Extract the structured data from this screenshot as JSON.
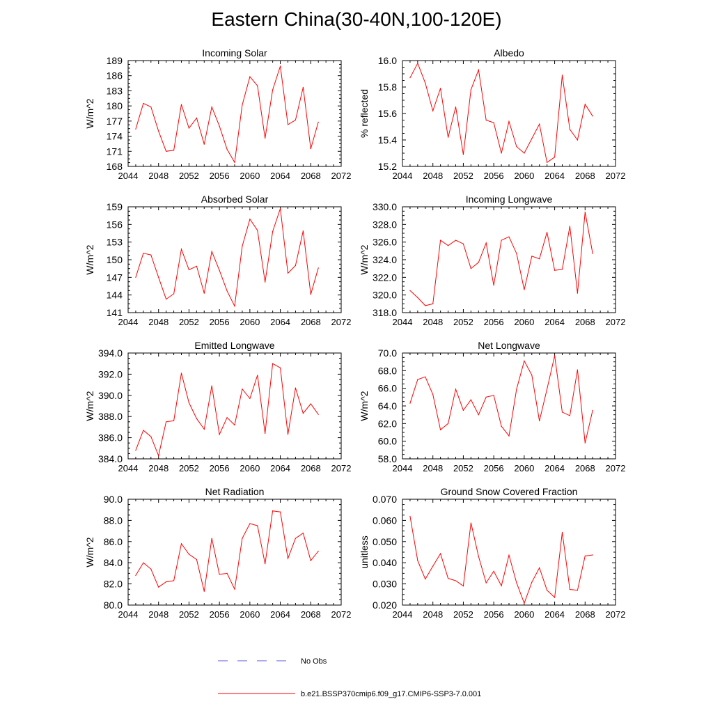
{
  "title": "Eastern China(30-40N,100-120E)",
  "legend": {
    "obs_label": "No Obs",
    "obs_color": "#5a5ad6",
    "model_label": "b.e21.BSSP370cmip6.f09_g17.CMIP6-SSP3-7.0.001",
    "model_color": "#ff0000"
  },
  "chart_data": [
    {
      "type": "line",
      "title": "Incoming Solar",
      "ylabel": "W/m^2",
      "xlim": [
        2044,
        2072
      ],
      "xticks": [
        2044,
        2048,
        2052,
        2056,
        2060,
        2064,
        2068,
        2072
      ],
      "ylim": [
        168,
        189
      ],
      "yticks": [
        "168",
        "171",
        "174",
        "177",
        "180",
        "183",
        "186",
        "189"
      ],
      "x": [
        2045,
        2046,
        2047,
        2048,
        2049,
        2050,
        2051,
        2052,
        2053,
        2054,
        2055,
        2056,
        2057,
        2058,
        2059,
        2060,
        2061,
        2062,
        2063,
        2064,
        2065,
        2066,
        2067,
        2068,
        2069
      ],
      "series": [
        {
          "values": [
            175.4,
            180.5,
            179.8,
            175.0,
            171.0,
            171.2,
            180.3,
            175.6,
            177.6,
            172.4,
            179.8,
            176.0,
            171.4,
            168.8,
            180.2,
            185.8,
            184.0,
            173.6,
            183.2,
            187.9,
            176.3,
            177.2,
            183.7,
            171.5,
            176.8
          ]
        }
      ]
    },
    {
      "type": "line",
      "title": "Albedo",
      "ylabel": "% reflected",
      "xlim": [
        2044,
        2072
      ],
      "xticks": [
        2044,
        2048,
        2052,
        2056,
        2060,
        2064,
        2068,
        2072
      ],
      "ylim": [
        15.2,
        16.0
      ],
      "yticks": [
        "15.2",
        "15.4",
        "15.6",
        "15.8",
        "16.0"
      ],
      "x": [
        2045,
        2046,
        2047,
        2048,
        2049,
        2050,
        2051,
        2052,
        2053,
        2054,
        2055,
        2056,
        2057,
        2058,
        2059,
        2060,
        2061,
        2062,
        2063,
        2064,
        2065,
        2066,
        2067,
        2068,
        2069
      ],
      "series": [
        {
          "values": [
            15.87,
            15.98,
            15.83,
            15.62,
            15.79,
            15.42,
            15.65,
            15.29,
            15.78,
            15.93,
            15.55,
            15.53,
            15.3,
            15.54,
            15.35,
            15.3,
            15.41,
            15.52,
            15.23,
            15.27,
            15.89,
            15.48,
            15.4,
            15.67,
            15.58
          ]
        }
      ]
    },
    {
      "type": "line",
      "title": "Absorbed Solar",
      "ylabel": "W/m^2",
      "xlim": [
        2044,
        2072
      ],
      "xticks": [
        2044,
        2048,
        2052,
        2056,
        2060,
        2064,
        2068,
        2072
      ],
      "ylim": [
        141,
        159
      ],
      "yticks": [
        "141",
        "144",
        "147",
        "150",
        "153",
        "156",
        "159"
      ],
      "x": [
        2045,
        2046,
        2047,
        2048,
        2049,
        2050,
        2051,
        2052,
        2053,
        2054,
        2055,
        2056,
        2057,
        2058,
        2059,
        2060,
        2061,
        2062,
        2063,
        2064,
        2065,
        2066,
        2067,
        2068,
        2069
      ],
      "series": [
        {
          "values": [
            147.0,
            151.1,
            150.8,
            147.0,
            143.3,
            144.2,
            151.8,
            148.3,
            148.9,
            144.3,
            151.4,
            148.2,
            144.7,
            142.1,
            152.3,
            156.9,
            155.0,
            146.2,
            154.8,
            158.7,
            147.7,
            149.0,
            154.9,
            144.1,
            148.6
          ]
        }
      ]
    },
    {
      "type": "line",
      "title": "Incoming Longwave",
      "ylabel": "W/m^2",
      "xlim": [
        2044,
        2072
      ],
      "xticks": [
        2044,
        2048,
        2052,
        2056,
        2060,
        2064,
        2068,
        2072
      ],
      "ylim": [
        318.0,
        330.0
      ],
      "yticks": [
        "318.0",
        "320.0",
        "322.0",
        "324.0",
        "326.0",
        "328.0",
        "330.0"
      ],
      "x": [
        2045,
        2046,
        2047,
        2048,
        2049,
        2050,
        2051,
        2052,
        2053,
        2054,
        2055,
        2056,
        2057,
        2058,
        2059,
        2060,
        2061,
        2062,
        2063,
        2064,
        2065,
        2066,
        2067,
        2068,
        2069
      ],
      "series": [
        {
          "values": [
            320.5,
            319.7,
            318.8,
            319.0,
            326.2,
            325.6,
            326.2,
            325.8,
            323.0,
            323.7,
            325.9,
            321.1,
            326.2,
            326.6,
            324.7,
            320.6,
            324.4,
            324.1,
            327.1,
            322.8,
            322.9,
            327.8,
            320.2,
            329.4,
            324.7
          ]
        }
      ]
    },
    {
      "type": "line",
      "title": "Emitted Longwave",
      "ylabel": "W/m^2",
      "xlim": [
        2044,
        2072
      ],
      "xticks": [
        2044,
        2048,
        2052,
        2056,
        2060,
        2064,
        2068,
        2072
      ],
      "ylim": [
        384.0,
        394.0
      ],
      "yticks": [
        "384.0",
        "386.0",
        "388.0",
        "390.0",
        "392.0",
        "394.0"
      ],
      "x": [
        2045,
        2046,
        2047,
        2048,
        2049,
        2050,
        2051,
        2052,
        2053,
        2054,
        2055,
        2056,
        2057,
        2058,
        2059,
        2060,
        2061,
        2062,
        2063,
        2064,
        2065,
        2066,
        2067,
        2068,
        2069
      ],
      "series": [
        {
          "values": [
            384.8,
            386.7,
            386.1,
            384.3,
            387.5,
            387.6,
            392.1,
            389.3,
            387.8,
            386.8,
            390.9,
            386.3,
            387.9,
            387.2,
            390.6,
            389.7,
            391.9,
            386.4,
            393.0,
            392.6,
            386.3,
            390.7,
            388.3,
            389.2,
            388.2
          ]
        }
      ]
    },
    {
      "type": "line",
      "title": "Net Longwave",
      "ylabel": "W/m^2",
      "xlim": [
        2044,
        2072
      ],
      "xticks": [
        2044,
        2048,
        2052,
        2056,
        2060,
        2064,
        2068,
        2072
      ],
      "ylim": [
        58.0,
        70.0
      ],
      "yticks": [
        "58.0",
        "60.0",
        "62.0",
        "64.0",
        "66.0",
        "68.0",
        "70.0"
      ],
      "x": [
        2045,
        2046,
        2047,
        2048,
        2049,
        2050,
        2051,
        2052,
        2053,
        2054,
        2055,
        2056,
        2057,
        2058,
        2059,
        2060,
        2061,
        2062,
        2063,
        2064,
        2065,
        2066,
        2067,
        2068,
        2069
      ],
      "series": [
        {
          "values": [
            64.3,
            67.0,
            67.3,
            65.3,
            61.3,
            62.0,
            65.9,
            63.5,
            64.7,
            63.0,
            65.0,
            65.2,
            61.7,
            60.6,
            65.9,
            69.1,
            67.5,
            62.3,
            65.9,
            69.7,
            63.3,
            62.9,
            68.1,
            59.8,
            63.5
          ]
        }
      ]
    },
    {
      "type": "line",
      "title": "Net Radiation",
      "ylabel": "W/m^2",
      "xlim": [
        2044,
        2072
      ],
      "xticks": [
        2044,
        2048,
        2052,
        2056,
        2060,
        2064,
        2068,
        2072
      ],
      "ylim": [
        80.0,
        90.0
      ],
      "yticks": [
        "80.0",
        "82.0",
        "84.0",
        "86.0",
        "88.0",
        "90.0"
      ],
      "x": [
        2045,
        2046,
        2047,
        2048,
        2049,
        2050,
        2051,
        2052,
        2053,
        2054,
        2055,
        2056,
        2057,
        2058,
        2059,
        2060,
        2061,
        2062,
        2063,
        2064,
        2065,
        2066,
        2067,
        2068,
        2069
      ],
      "series": [
        {
          "values": [
            82.8,
            84.0,
            83.4,
            81.7,
            82.2,
            82.3,
            85.8,
            84.8,
            84.3,
            81.3,
            86.3,
            82.9,
            83.0,
            81.5,
            86.3,
            87.7,
            87.5,
            83.9,
            88.9,
            88.8,
            84.4,
            86.3,
            86.8,
            84.2,
            85.1
          ]
        }
      ]
    },
    {
      "type": "line",
      "title": "Ground Snow Covered Fraction",
      "ylabel": "unitless",
      "xlim": [
        2044,
        2072
      ],
      "xticks": [
        2044,
        2048,
        2052,
        2056,
        2060,
        2064,
        2068,
        2072
      ],
      "ylim": [
        0.02,
        0.07
      ],
      "yticks": [
        "0.020",
        "0.030",
        "0.040",
        "0.050",
        "0.060",
        "0.070"
      ],
      "x": [
        2045,
        2046,
        2047,
        2048,
        2049,
        2050,
        2051,
        2052,
        2053,
        2054,
        2055,
        2056,
        2057,
        2058,
        2059,
        2060,
        2061,
        2062,
        2063,
        2064,
        2065,
        2066,
        2067,
        2068,
        2069
      ],
      "series": [
        {
          "values": [
            0.062,
            0.041,
            0.0323,
            0.0384,
            0.0443,
            0.0326,
            0.0315,
            0.029,
            0.0588,
            0.043,
            0.0305,
            0.036,
            0.0291,
            0.0436,
            0.0305,
            0.0209,
            0.0308,
            0.0376,
            0.027,
            0.0236,
            0.0544,
            0.0274,
            0.027,
            0.0432,
            0.0437
          ]
        }
      ]
    }
  ]
}
